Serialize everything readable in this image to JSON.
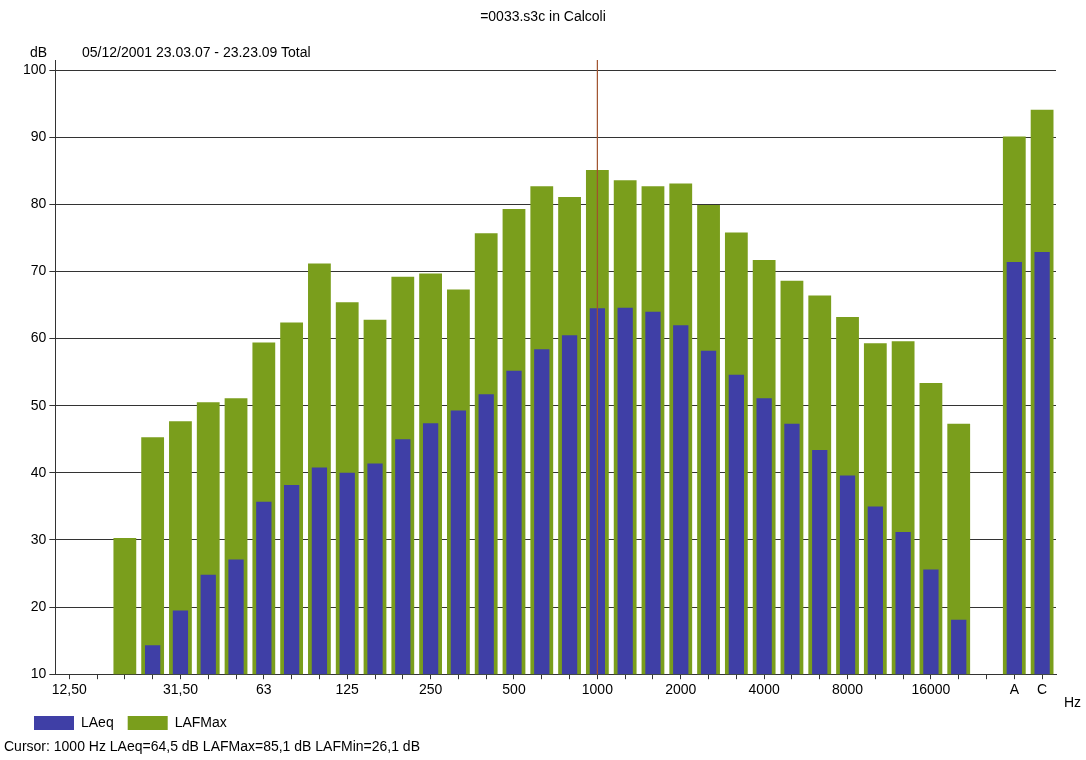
{
  "chart_data": {
    "type": "bar",
    "title": "=0033.s3c in Calcoli",
    "subtitle": "05/12/2001 23.03.07 - 23.23.09  Total",
    "ylabel": "dB",
    "xlabel": "Hz",
    "categories": [
      "12,50",
      null,
      null,
      null,
      "31,50",
      null,
      null,
      "63",
      null,
      null,
      "125",
      null,
      null,
      "250",
      null,
      null,
      "500",
      null,
      null,
      "1000",
      null,
      null,
      "2000",
      null,
      null,
      "4000",
      null,
      null,
      "8000",
      null,
      null,
      "16000",
      null,
      null,
      "A",
      "C"
    ],
    "series": [
      {
        "name": "LAeq",
        "color": "#3f3fa6",
        "values": [
          null,
          null,
          null,
          14.3,
          19.5,
          24.8,
          27.1,
          35.7,
          38.2,
          40.8,
          40,
          41.4,
          45,
          47.4,
          49.3,
          51.7,
          55.2,
          58.4,
          60.5,
          64.5,
          64.6,
          64,
          62,
          58.2,
          54.6,
          51.1,
          47.3,
          43.4,
          39.6,
          35,
          31.2,
          25.6,
          18.1,
          null,
          71.4,
          72.9
        ]
      },
      {
        "name": "LAFMax",
        "color": "#7a9e1c",
        "values": [
          null,
          null,
          30.3,
          45.3,
          47.7,
          50.5,
          51.1,
          59.4,
          62.4,
          71.2,
          65.4,
          62.8,
          69.2,
          69.7,
          67.3,
          75.7,
          79.3,
          82.7,
          81.1,
          85.1,
          83.6,
          82.7,
          83.1,
          79.9,
          75.8,
          71.7,
          68.6,
          66.4,
          63.2,
          59.3,
          59.6,
          53.4,
          47.3,
          null,
          90.1,
          94.1
        ]
      }
    ],
    "ylim": [
      10,
      101.5
    ],
    "yticks": [
      10,
      20,
      30,
      40,
      50,
      60,
      70,
      80,
      90,
      100
    ],
    "grid": "y",
    "legend": "bottom left",
    "ref_lines": [
      {
        "axis": "x",
        "value": "1000",
        "color": "#a0522d"
      }
    ],
    "annotations": [
      "Cursor: 1000 Hz  LAeq=64,5 dB  LAFMax=85,1 dB  LAFMin=26,1 dB"
    ]
  }
}
